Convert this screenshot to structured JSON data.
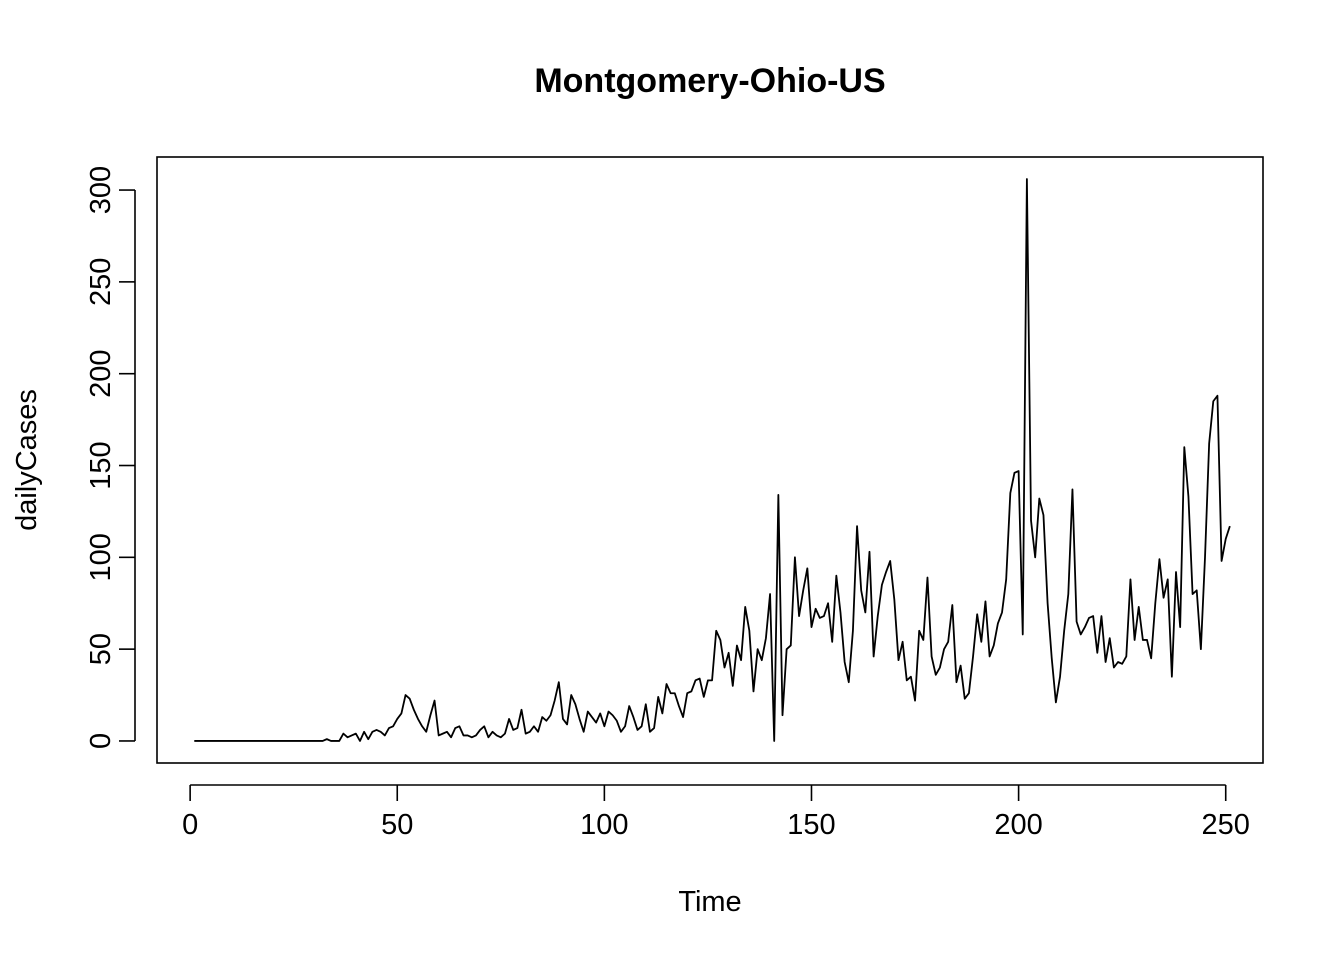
{
  "chart_data": {
    "type": "line",
    "title": "Montgomery-Ohio-US",
    "xlabel": "Time",
    "ylabel": "dailyCases",
    "xlim": [
      -8,
      259
    ],
    "ylim": [
      -12,
      318
    ],
    "x_ticks": [
      0,
      50,
      100,
      150,
      200,
      250
    ],
    "y_ticks": [
      0,
      50,
      100,
      150,
      200,
      250,
      300
    ],
    "grid": false,
    "legend": "none",
    "line_color": "#000000",
    "series": [
      {
        "x_start": 1,
        "values": [
          0,
          0,
          0,
          0,
          0,
          0,
          0,
          0,
          0,
          0,
          0,
          0,
          0,
          0,
          0,
          0,
          0,
          0,
          0,
          0,
          0,
          0,
          0,
          0,
          0,
          0,
          0,
          0,
          0,
          0,
          0,
          0,
          1,
          0,
          0,
          0,
          4,
          2,
          3,
          4,
          0,
          5,
          1,
          5,
          6,
          5,
          3,
          7,
          8,
          12,
          15,
          25,
          23,
          17,
          12,
          8,
          5,
          14,
          22,
          3,
          4,
          5,
          2,
          7,
          8,
          3,
          3,
          2,
          3,
          6,
          8,
          2,
          5,
          3,
          2,
          4,
          12,
          6,
          7,
          17,
          4,
          5,
          8,
          5,
          13,
          11,
          14,
          22,
          32,
          12,
          9,
          25,
          20,
          12,
          5,
          16,
          13,
          10,
          15,
          8,
          16,
          14,
          11,
          5,
          8,
          19,
          13,
          6,
          8,
          20,
          5,
          7,
          24,
          15,
          31,
          26,
          26,
          19,
          13,
          26,
          27,
          33,
          34,
          24,
          33,
          33,
          60,
          55,
          40,
          48,
          30,
          52,
          44,
          73,
          60,
          27,
          50,
          44,
          56,
          80,
          0,
          134,
          14,
          50,
          52,
          100,
          68,
          82,
          94,
          62,
          72,
          67,
          68,
          75,
          54,
          90,
          70,
          43,
          32,
          60,
          117,
          82,
          70,
          103,
          46,
          68,
          85,
          92,
          98,
          77,
          44,
          54,
          33,
          35,
          22,
          60,
          55,
          89,
          46,
          36,
          40,
          50,
          54,
          74,
          32,
          41,
          23,
          26,
          46,
          69,
          54,
          76,
          46,
          52,
          64,
          70,
          88,
          135,
          146,
          147,
          58,
          306,
          120,
          100,
          132,
          123,
          75,
          45,
          21,
          35,
          60,
          80,
          137,
          65,
          58,
          62,
          67,
          68,
          48,
          68,
          43,
          56,
          40,
          43,
          42,
          46,
          88,
          55,
          73,
          55,
          55,
          45,
          75,
          99,
          78,
          88,
          35,
          92,
          62,
          160,
          133,
          80,
          82,
          50,
          100,
          162,
          185,
          188,
          98,
          110,
          117
        ]
      }
    ]
  }
}
